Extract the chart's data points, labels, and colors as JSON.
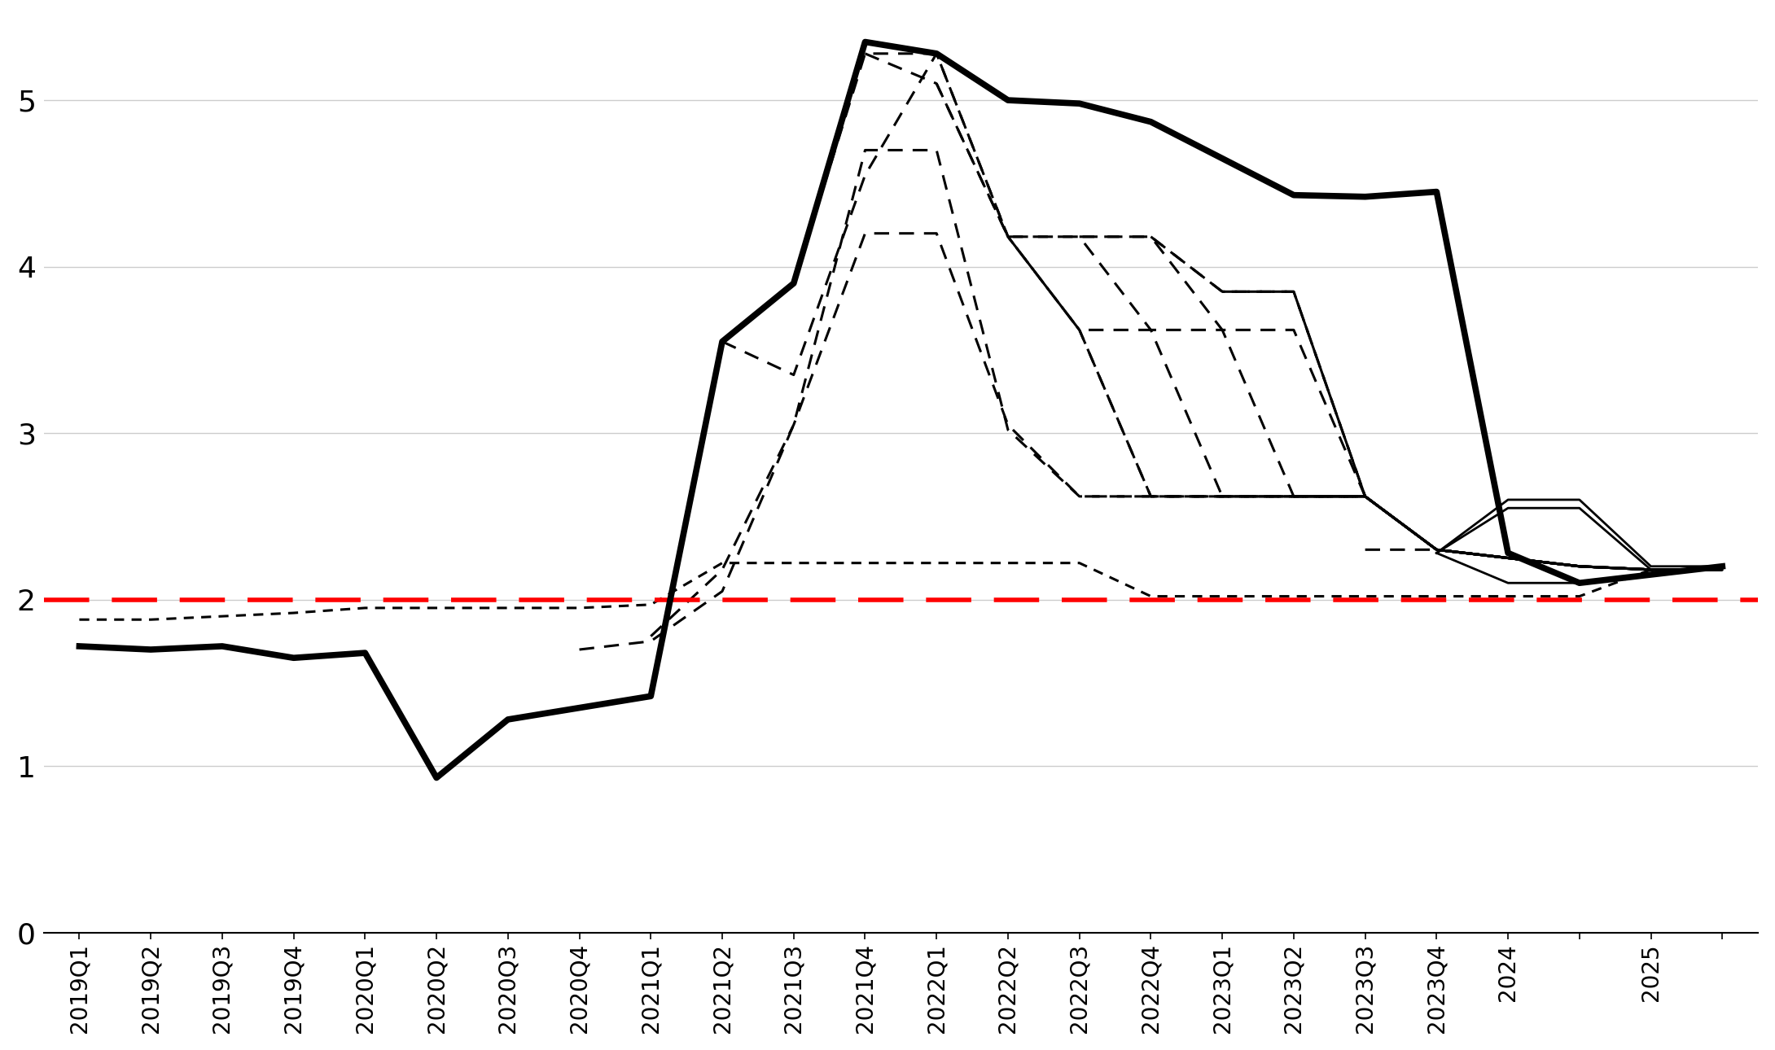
{
  "background_color": "#ffffff",
  "target_value": 2.0,
  "ylim": [
    0,
    5.5
  ],
  "yticks": [
    0,
    1,
    2,
    3,
    4,
    5
  ],
  "x_labels": [
    "2019Q1",
    "2019Q2",
    "2019Q3",
    "2019Q4",
    "2020Q1",
    "2020Q2",
    "2020Q3",
    "2020Q4",
    "2021Q1",
    "2021Q2",
    "2021Q3",
    "2021Q4",
    "2022Q1",
    "2022Q2",
    "2022Q3",
    "2022Q4",
    "2023Q1",
    "2023Q2",
    "2023Q3",
    "2023Q4",
    "2024",
    "",
    "2025",
    ""
  ],
  "main_line": {
    "x": [
      0,
      1,
      2,
      3,
      4,
      5,
      6,
      7,
      8,
      9,
      10,
      11,
      12,
      13,
      14,
      15,
      16,
      17,
      18,
      19,
      20,
      21,
      22,
      23
    ],
    "y": [
      1.72,
      1.7,
      1.72,
      1.65,
      1.68,
      0.93,
      1.28,
      1.35,
      1.42,
      3.55,
      3.9,
      5.35,
      5.28,
      5.0,
      4.98,
      4.87,
      4.65,
      4.43,
      4.42,
      4.45,
      2.28,
      2.1,
      2.15,
      2.2
    ]
  },
  "dotted_line": {
    "x": [
      0,
      1,
      2,
      3,
      4,
      5,
      6,
      7,
      8,
      9,
      10,
      11,
      12,
      13,
      14,
      15,
      16,
      17,
      18,
      19,
      20,
      21,
      22,
      23
    ],
    "y": [
      1.88,
      1.88,
      1.9,
      1.92,
      1.95,
      1.95,
      1.95,
      1.95,
      1.97,
      2.22,
      2.22,
      2.22,
      2.22,
      2.22,
      2.22,
      2.02,
      2.02,
      2.02,
      2.02,
      2.02,
      2.02,
      2.02,
      2.18,
      2.18
    ]
  },
  "forecast_lines": [
    {
      "points_x": [
        7,
        8,
        9,
        10,
        11,
        12,
        13,
        14,
        15,
        16,
        17,
        18,
        19,
        20,
        21,
        22,
        23
      ],
      "points_y": [
        1.7,
        1.75,
        2.05,
        3.05,
        4.7,
        4.7,
        3.02,
        2.62,
        2.62,
        2.62,
        2.62,
        2.62,
        2.3,
        2.25,
        2.2,
        2.18,
        2.18
      ]
    },
    {
      "points_x": [
        8,
        9,
        10,
        11,
        12,
        13,
        14,
        15,
        16,
        17,
        18,
        19,
        20,
        21,
        22,
        23
      ],
      "points_y": [
        1.78,
        2.18,
        3.05,
        4.2,
        4.2,
        3.05,
        2.62,
        2.62,
        2.62,
        2.62,
        2.62,
        2.3,
        2.25,
        2.2,
        2.18,
        2.18
      ]
    },
    {
      "points_x": [
        9,
        10,
        11,
        12,
        13,
        14,
        15,
        16,
        17,
        18,
        19,
        20,
        21,
        22,
        23
      ],
      "points_y": [
        3.55,
        3.35,
        4.55,
        5.28,
        4.18,
        3.62,
        2.62,
        2.62,
        2.62,
        2.62,
        2.3,
        2.25,
        2.2,
        2.18,
        2.18
      ]
    },
    {
      "points_x": [
        10,
        11,
        12,
        13,
        14,
        15,
        16,
        17,
        18,
        19,
        20,
        21,
        22,
        23
      ],
      "points_y": [
        3.9,
        5.28,
        5.28,
        4.18,
        3.62,
        2.62,
        2.62,
        2.62,
        2.62,
        2.3,
        2.25,
        2.2,
        2.18,
        2.18
      ]
    },
    {
      "points_x": [
        11,
        12,
        13,
        14,
        15,
        16,
        17,
        18,
        19,
        20,
        21,
        22,
        23
      ],
      "points_y": [
        5.28,
        5.1,
        4.18,
        3.62,
        3.62,
        2.62,
        2.62,
        2.62,
        2.3,
        2.25,
        2.2,
        2.18,
        2.18
      ]
    },
    {
      "points_x": [
        12,
        13,
        14,
        15,
        16,
        17,
        18,
        19,
        20,
        21,
        22,
        23
      ],
      "points_y": [
        5.1,
        4.18,
        4.18,
        3.62,
        3.62,
        2.62,
        2.62,
        2.3,
        2.25,
        2.2,
        2.18,
        2.18
      ]
    },
    {
      "points_x": [
        13,
        14,
        15,
        16,
        17,
        18,
        19,
        20,
        21,
        22,
        23
      ],
      "points_y": [
        4.18,
        4.18,
        4.18,
        3.62,
        3.62,
        2.62,
        2.3,
        2.25,
        2.2,
        2.18,
        2.18
      ]
    },
    {
      "points_x": [
        14,
        15,
        16,
        17,
        18,
        19,
        20,
        21,
        22,
        23
      ],
      "points_y": [
        4.18,
        4.18,
        3.85,
        3.85,
        2.62,
        2.3,
        2.25,
        2.2,
        2.18,
        2.18
      ]
    },
    {
      "points_x": [
        15,
        16,
        17,
        18,
        19,
        20,
        21,
        22,
        23
      ],
      "points_y": [
        4.18,
        3.85,
        3.85,
        2.62,
        2.3,
        2.25,
        2.2,
        2.18,
        2.18
      ]
    },
    {
      "points_x": [
        16,
        17,
        18,
        19,
        20,
        21,
        22,
        23
      ],
      "points_y": [
        3.85,
        3.85,
        2.62,
        2.3,
        2.25,
        2.2,
        2.18,
        2.18
      ]
    },
    {
      "points_x": [
        17,
        18,
        19,
        20,
        21,
        22,
        23
      ],
      "points_y": [
        2.62,
        2.62,
        2.3,
        2.25,
        2.2,
        2.18,
        2.18
      ]
    },
    {
      "points_x": [
        18,
        19,
        20,
        21,
        22,
        23
      ],
      "points_y": [
        2.3,
        2.3,
        2.25,
        2.2,
        2.18,
        2.18
      ]
    },
    {
      "points_x": [
        19,
        20,
        21,
        22,
        23
      ],
      "points_y": [
        2.3,
        2.25,
        2.2,
        2.18,
        2.18
      ]
    }
  ],
  "solid_forecast_lines": [
    {
      "points_x": [
        19,
        20,
        21,
        22,
        23
      ],
      "points_y": [
        2.28,
        2.6,
        2.6,
        2.2,
        2.2
      ]
    },
    {
      "points_x": [
        19,
        20,
        21,
        22,
        23
      ],
      "points_y": [
        2.28,
        2.55,
        2.55,
        2.18,
        2.18
      ]
    },
    {
      "points_x": [
        19,
        20,
        21,
        22,
        23
      ],
      "points_y": [
        2.28,
        2.1,
        2.1,
        2.15,
        2.2
      ]
    }
  ]
}
